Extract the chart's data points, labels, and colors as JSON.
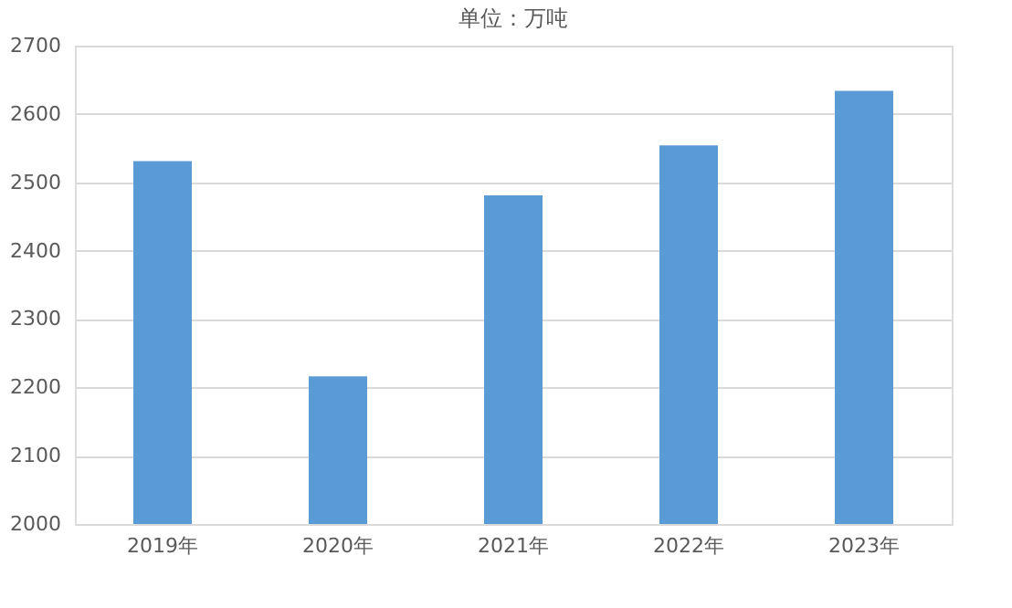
{
  "chart_data": {
    "type": "bar",
    "title": "单位：万吨",
    "categories": [
      "2019年",
      "2020年",
      "2021年",
      "2022年",
      "2023年"
    ],
    "values": [
      2531,
      2216,
      2481,
      2554,
      2634
    ],
    "color": "#5b9bd5",
    "ylim": [
      2000,
      2700
    ],
    "yticks": [
      2000,
      2100,
      2200,
      2300,
      2400,
      2500,
      2600,
      2700
    ],
    "grid": "y",
    "legend": false
  }
}
